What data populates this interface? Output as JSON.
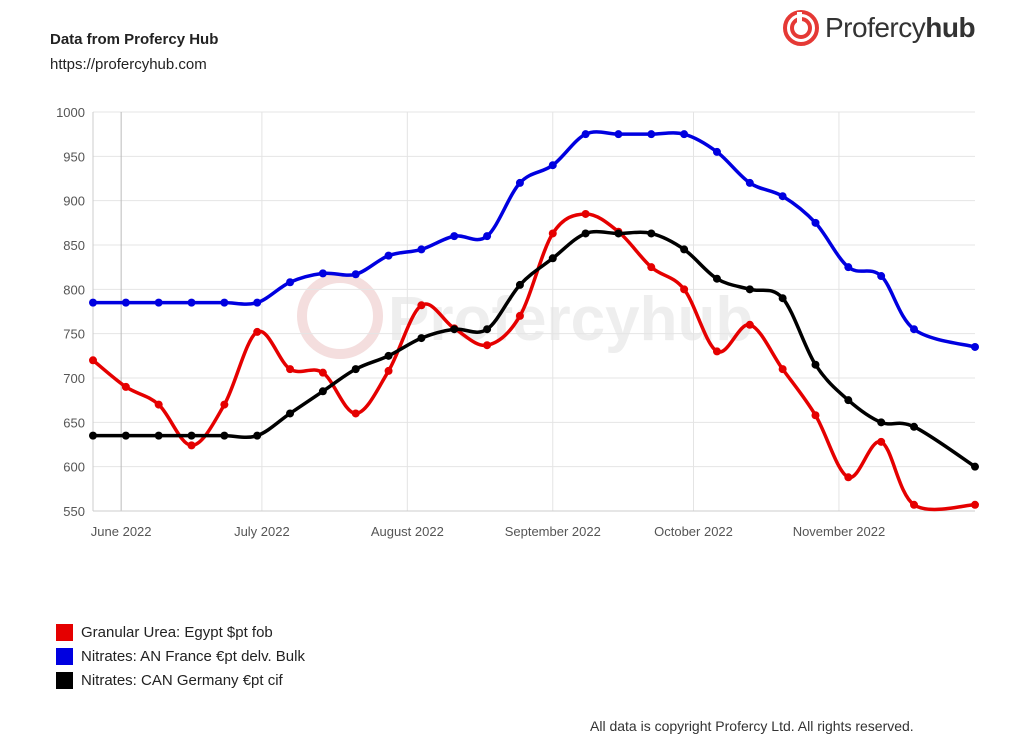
{
  "header": {
    "title": "Data from Profercy Hub",
    "url": "https://profercyhub.com"
  },
  "brand": {
    "name_light": "Profercy",
    "name_bold": "hub",
    "color": "#e53935"
  },
  "footer": {
    "copyright": "All data is copyright Profercy Ltd. All rights reserved."
  },
  "chart_data": {
    "type": "line",
    "title": "",
    "xlabel": "",
    "ylabel": "",
    "ylim": [
      550,
      1000
    ],
    "yticks": [
      550,
      600,
      650,
      700,
      750,
      800,
      850,
      900,
      950,
      1000
    ],
    "xlim": [
      "2022-05-26",
      "2022-11-30"
    ],
    "xticks": [
      {
        "date": "2022-06-01",
        "label": "June 2022"
      },
      {
        "date": "2022-07-01",
        "label": "July 2022"
      },
      {
        "date": "2022-08-01",
        "label": "August 2022"
      },
      {
        "date": "2022-09-01",
        "label": "September 2022"
      },
      {
        "date": "2022-10-01",
        "label": "October 2022"
      },
      {
        "date": "2022-11-01",
        "label": "November 2022"
      }
    ],
    "grid": true,
    "legend_position": "bottom-left",
    "x": [
      "2022-05-26",
      "2022-06-02",
      "2022-06-09",
      "2022-06-16",
      "2022-06-23",
      "2022-06-30",
      "2022-07-07",
      "2022-07-14",
      "2022-07-21",
      "2022-07-28",
      "2022-08-04",
      "2022-08-11",
      "2022-08-18",
      "2022-08-25",
      "2022-09-01",
      "2022-09-08",
      "2022-09-15",
      "2022-09-22",
      "2022-09-29",
      "2022-10-06",
      "2022-10-13",
      "2022-10-20",
      "2022-10-27",
      "2022-11-03",
      "2022-11-10",
      "2022-11-17",
      "2022-11-24",
      "2022-11-30"
    ],
    "series": [
      {
        "name": "Granular Urea: Egypt $pt fob",
        "color": "#e50000",
        "values": [
          720,
          690,
          670,
          624,
          670,
          752,
          710,
          706,
          660,
          708,
          782,
          756,
          737,
          770,
          863,
          885,
          865,
          825,
          800,
          730,
          760,
          710,
          658,
          588,
          628,
          557,
          557,
          null
        ]
      },
      {
        "name": "Nitrates: AN France €pt delv. Bulk",
        "color": "#0000e0",
        "values": [
          785,
          785,
          785,
          785,
          785,
          785,
          808,
          818,
          817,
          838,
          845,
          860,
          860,
          920,
          940,
          975,
          975,
          975,
          975,
          955,
          920,
          905,
          875,
          825,
          815,
          755,
          735,
          null
        ]
      },
      {
        "name": "Nitrates: CAN Germany €pt cif",
        "color": "#000000",
        "values": [
          635,
          635,
          635,
          635,
          635,
          635,
          660,
          685,
          710,
          725,
          745,
          755,
          755,
          805,
          835,
          863,
          863,
          863,
          845,
          812,
          800,
          790,
          715,
          675,
          650,
          645,
          600,
          null
        ]
      }
    ]
  },
  "watermark": "Profercyhub"
}
